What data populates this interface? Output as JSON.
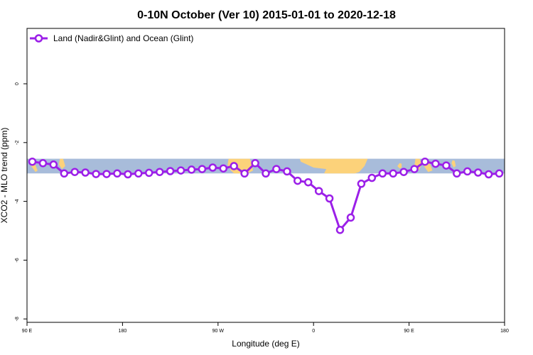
{
  "chart_data": {
    "type": "line",
    "title": "0-10N October (Ver 10)   2015-01-01 to 2020-12-18",
    "xlabel": "Longitude (deg E)",
    "ylabel": "XCO2 - MLO trend (ppm)",
    "xlim": [
      90,
      540
    ],
    "ylim": [
      -8,
      2
    ],
    "x_ticks": [
      {
        "value": 90,
        "label": "90 E"
      },
      {
        "value": 180,
        "label": "180"
      },
      {
        "value": 270,
        "label": "90 W"
      },
      {
        "value": 360,
        "label": "0"
      },
      {
        "value": 450,
        "label": "90 E"
      },
      {
        "value": 540,
        "label": "180"
      }
    ],
    "y_ticks": [
      {
        "value": 0,
        "label": "0"
      },
      {
        "value": -2,
        "label": "-2"
      },
      {
        "value": -4,
        "label": "-4"
      },
      {
        "value": -6,
        "label": "-6"
      },
      {
        "value": -8,
        "label": "-8"
      }
    ],
    "legend_position": "top-left",
    "series": [
      {
        "name": "Land (Nadir&Glint) and Ocean (Glint)",
        "color": "#9b1fe8",
        "x": [
          95,
          105,
          115,
          125,
          135,
          145,
          155,
          165,
          175,
          185,
          195,
          205,
          215,
          225,
          235,
          245,
          255,
          265,
          275,
          285,
          295,
          305,
          315,
          325,
          335,
          345,
          355,
          365,
          375,
          385,
          395,
          405,
          415,
          425,
          435,
          445,
          455,
          465,
          475,
          485,
          495,
          505,
          515,
          525,
          535
        ],
        "y": [
          -2.65,
          -2.7,
          -2.75,
          -3.05,
          -3.0,
          -3.02,
          -3.07,
          -3.07,
          -3.05,
          -3.08,
          -3.05,
          -3.03,
          -3.0,
          -2.97,
          -2.95,
          -2.92,
          -2.9,
          -2.85,
          -2.88,
          -2.8,
          -3.05,
          -2.7,
          -3.05,
          -2.9,
          -2.98,
          -3.3,
          -3.35,
          -3.65,
          -3.9,
          -4.97,
          -4.55,
          -3.4,
          -3.2,
          -3.05,
          -3.05,
          -3.0,
          -2.9,
          -2.65,
          -2.72,
          -2.78,
          -3.05,
          -2.98,
          -3.02,
          -3.08,
          -3.05
        ]
      }
    ]
  },
  "map_band": {
    "y_range": [
      -3.05,
      -2.55
    ],
    "ocean_color": "#a8bcda",
    "land_color": "#fcd27a"
  }
}
